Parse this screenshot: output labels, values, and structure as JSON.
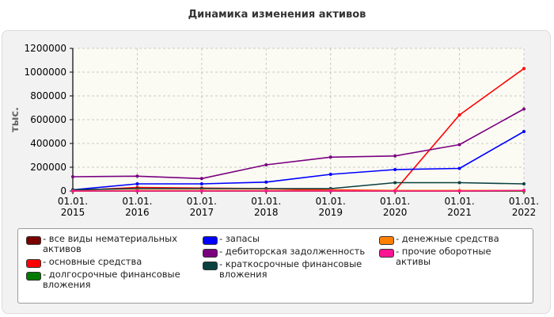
{
  "chart_data": {
    "type": "line",
    "title": "Динамика изменения активов",
    "ylabel": "тыс.",
    "xlabel": "",
    "ylim": [
      0,
      1200000
    ],
    "yticks": [
      0,
      200000,
      400000,
      600000,
      800000,
      1000000,
      1200000
    ],
    "categories": [
      [
        "01.01.",
        "2015"
      ],
      [
        "01.01.",
        "2016"
      ],
      [
        "01.01.",
        "2017"
      ],
      [
        "01.01.",
        "2018"
      ],
      [
        "01.01.",
        "2019"
      ],
      [
        "01.01.",
        "2020"
      ],
      [
        "01.01.",
        "2021"
      ],
      [
        "01.01.",
        "2022"
      ]
    ],
    "grid": true,
    "legend_position": "bottom",
    "series": [
      {
        "name": "- все виды нематериальных активов",
        "color": "#7a0000",
        "values": [
          0,
          0,
          0,
          0,
          0,
          0,
          0,
          0
        ]
      },
      {
        "name": "- основные средства",
        "color": "#ff0000",
        "values": [
          5000,
          30000,
          25000,
          20000,
          10000,
          5000,
          640000,
          1030000
        ]
      },
      {
        "name": "- долгосрочные финансовые вложения",
        "color": "#007a00",
        "values": [
          0,
          0,
          0,
          0,
          0,
          0,
          0,
          0
        ]
      },
      {
        "name": "- запасы",
        "color": "#0000ff",
        "values": [
          10000,
          60000,
          60000,
          75000,
          140000,
          180000,
          190000,
          500000
        ]
      },
      {
        "name": "- дебиторская задолженность",
        "color": "#7a0080",
        "values": [
          120000,
          125000,
          105000,
          220000,
          285000,
          295000,
          390000,
          690000
        ]
      },
      {
        "name": "- краткосрочные финансовые вложения",
        "color": "#0a4040",
        "values": [
          10000,
          20000,
          20000,
          20000,
          20000,
          70000,
          70000,
          60000
        ]
      },
      {
        "name": "- денежные средства",
        "color": "#ff8000",
        "values": [
          0,
          5000,
          5000,
          5000,
          5000,
          5000,
          5000,
          5000
        ]
      },
      {
        "name": "- прочие оборотные активы",
        "color": "#ff1493",
        "values": [
          0,
          0,
          0,
          0,
          0,
          0,
          0,
          5000
        ]
      }
    ]
  }
}
